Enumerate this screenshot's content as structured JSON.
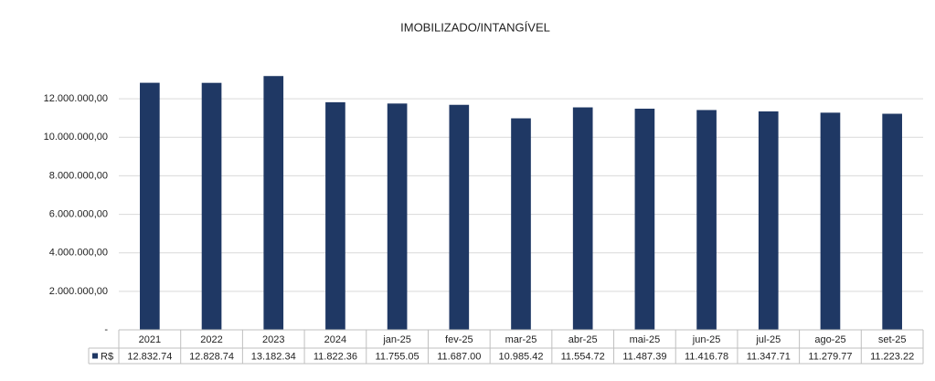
{
  "chart_data": {
    "type": "bar",
    "title": "IMOBILIZADO/INTANGÍVEL",
    "categories": [
      "2021",
      "2022",
      "2023",
      "2024",
      "jan-25",
      "fev-25",
      "mar-25",
      "abr-25",
      "mai-25",
      "jun-25",
      "jul-25",
      "ago-25",
      "set-25"
    ],
    "series": [
      {
        "name": "R$",
        "color": "#1f3864",
        "values": [
          12832740,
          12828740,
          13182340,
          11822360,
          11755050,
          11687000,
          10985420,
          11554720,
          11487390,
          11416780,
          11347710,
          11279770,
          11223220
        ],
        "value_labels": [
          "12.832.74",
          "12.828.74",
          "13.182.34",
          "11.822.36",
          "11.755.05",
          "11.687.00",
          "10.985.42",
          "11.554.72",
          "11.487.39",
          "11.416.78",
          "11.347.71",
          "11.279.77",
          "11.223.22"
        ]
      }
    ],
    "ylim": [
      0,
      14000000
    ],
    "yticks": [
      {
        "value": 0,
        "label": "-"
      },
      {
        "value": 2000000,
        "label": "2.000.000,00"
      },
      {
        "value": 4000000,
        "label": "4.000.000,00"
      },
      {
        "value": 6000000,
        "label": "6.000.000,00"
      },
      {
        "value": 8000000,
        "label": "8.000.000,00"
      },
      {
        "value": 10000000,
        "label": "10.000.000,00"
      },
      {
        "value": 12000000,
        "label": "12.000.000,00"
      }
    ],
    "grid": true
  }
}
